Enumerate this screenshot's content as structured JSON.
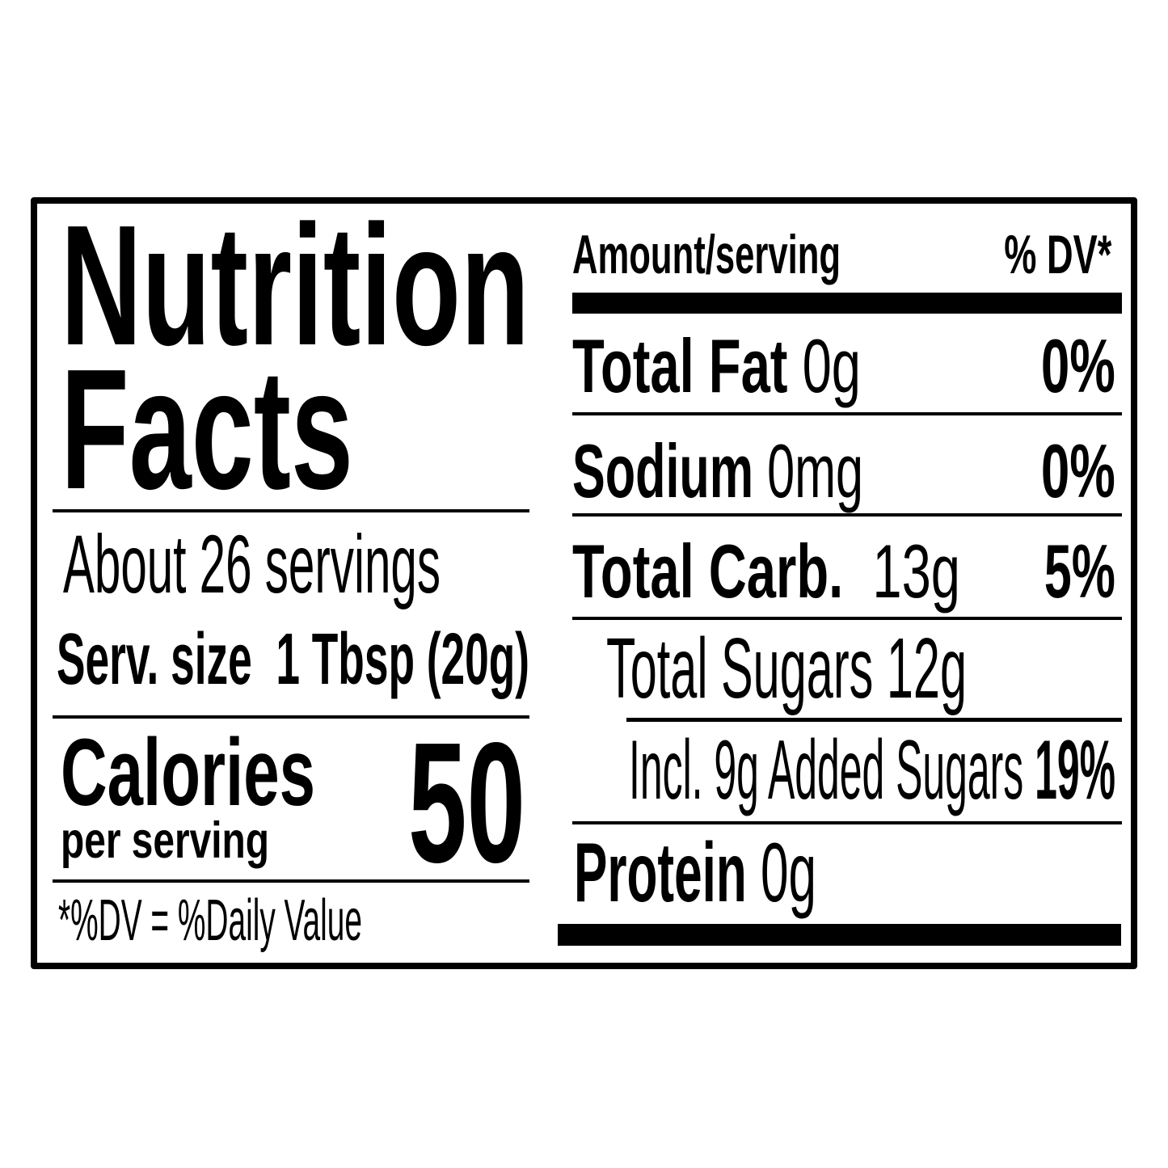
{
  "label": {
    "title_line1": "Nutrition",
    "title_line2": "Facts",
    "servings_per_container": "About 26 servings",
    "serving_size_label": "Serv. size",
    "serving_size_value": "1 Tbsp (20g)",
    "calories_label": "Calories",
    "calories_sublabel": "per serving",
    "calories_value": "50",
    "footnote": "*%DV = %Daily Value",
    "amount_header": "Amount/serving",
    "dv_header": "% DV*",
    "nutrients": [
      {
        "name": "Total Fat",
        "amount": "0g",
        "dv": "0%"
      },
      {
        "name": "Sodium",
        "amount": "0mg",
        "dv": "0%"
      },
      {
        "name": "Total Carb.",
        "amount": "13g",
        "dv": "5%"
      },
      {
        "name": "Total Sugars",
        "amount": "12g",
        "dv": ""
      },
      {
        "name": "Incl. 9g Added Sugars",
        "amount": "",
        "dv": "19%"
      },
      {
        "name": "Protein",
        "amount": "0g",
        "dv": ""
      }
    ]
  }
}
